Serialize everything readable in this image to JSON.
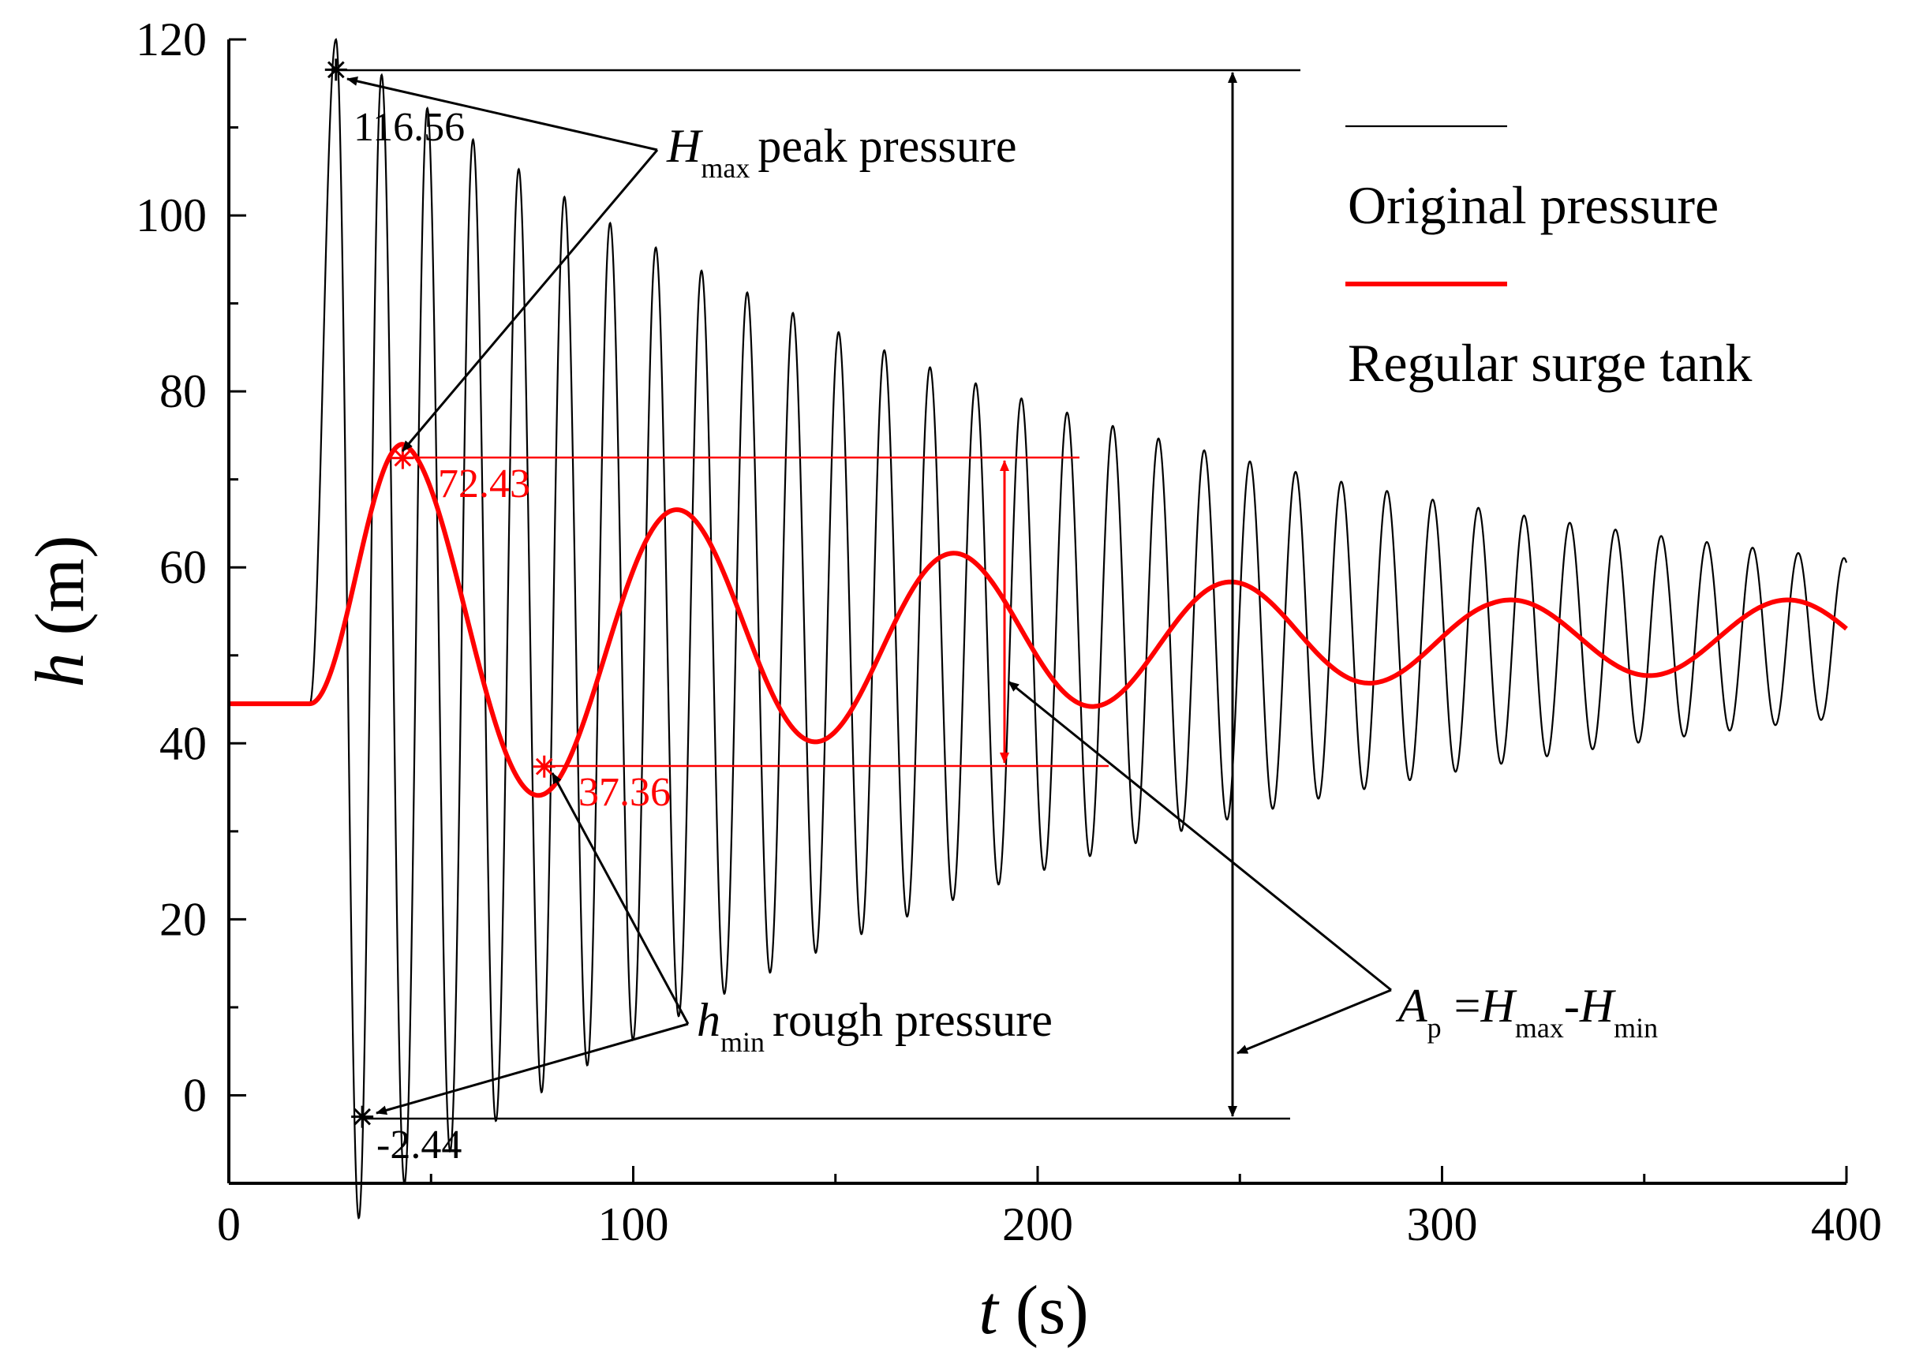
{
  "chart_data": {
    "type": "line",
    "xlabel": {
      "symbol": "t",
      "unit": "(s)"
    },
    "ylabel": {
      "symbol": "h",
      "unit": "(m)"
    },
    "xlim": [
      0,
      400
    ],
    "ylim": [
      -10,
      120
    ],
    "xticks": [
      0,
      100,
      200,
      300,
      400
    ],
    "xtick_labels": [
      "0",
      "100",
      "200",
      "300",
      "400"
    ],
    "yticks": [
      0,
      20,
      40,
      60,
      80,
      100,
      120
    ],
    "ytick_labels": [
      "0",
      "20",
      "40",
      "60",
      "80",
      "100",
      "120"
    ],
    "grid": false,
    "legend": {
      "position": "top-right",
      "entries": [
        {
          "name": "Original pressure",
          "color": "#000000"
        },
        {
          "name": "Regular surge tank",
          "color": "#ff0000"
        }
      ]
    },
    "series": [
      {
        "name": "Original pressure",
        "color": "#000000",
        "model": {
          "initial": 44.5,
          "start_t": 20,
          "mean": 52.0,
          "peak_t": 26.5,
          "period": 11.3,
          "amp_start": 68.0,
          "amp_tau": 185,
          "amp_floor": 4.8
        }
      },
      {
        "name": "Regular surge tank",
        "color": "#ff0000",
        "model": {
          "initial": 44.5,
          "start_t": 20,
          "mean": 52.0,
          "peak_t": 43,
          "period": 68.5,
          "amp_start": 22.0,
          "amp_tau": 165,
          "amp_floor": 4.3
        }
      }
    ],
    "annotations": [
      {
        "label": "116.56",
        "t": 26.5,
        "h": 116.56,
        "color": "#000000"
      },
      {
        "label": "-2.44",
        "t": 33,
        "h": -2.44,
        "color": "#000000"
      },
      {
        "label": "72.43",
        "t": 43,
        "h": 72.43,
        "color": "#ff0000"
      },
      {
        "label": "37.36",
        "t": 78,
        "h": 37.36,
        "color": "#ff0000"
      }
    ],
    "callouts": {
      "hmax": {
        "symbol": "H",
        "subscript": "max",
        "text": "peak pressure"
      },
      "hmin": {
        "symbol": "h",
        "subscript": "min",
        "text": "rough pressure"
      },
      "ap": {
        "symbol": "A",
        "subscript": "p",
        "eq1": "=",
        "h1": "H",
        "h1_sub": "max",
        "minus": "-",
        "h2": "H",
        "h2_sub": "min"
      }
    }
  }
}
